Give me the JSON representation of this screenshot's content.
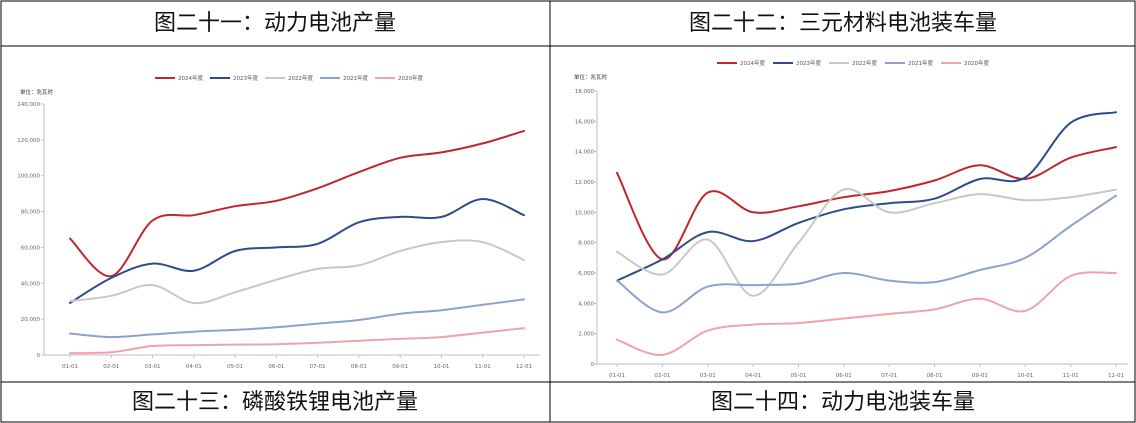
{
  "titles": {
    "top_left": "图二十一：动力电池产量",
    "top_right": "图二十二：三元材料电池装车量",
    "bottom_left": "图二十三：磷酸铁锂电池产量",
    "bottom_right": "图二十四：动力电池装车量"
  },
  "chart_data": [
    {
      "type": "line",
      "unit_label": "单位：兆瓦时",
      "categories": [
        "01-01",
        "02-01",
        "03-01",
        "04-01",
        "05-01",
        "06-01",
        "07-01",
        "08-01",
        "09-01",
        "10-01",
        "11-01",
        "12-01"
      ],
      "ylim": [
        0,
        140000
      ],
      "yticks": [
        0,
        20000,
        40000,
        60000,
        80000,
        100000,
        120000,
        140000
      ],
      "ytick_labels": [
        "0",
        "20,000",
        "40,000",
        "60,000",
        "80,000",
        "100,000",
        "120,000",
        "140,000"
      ],
      "legend_position": "top",
      "grid": false,
      "series": [
        {
          "name": "2024年度",
          "color": "#c0262d",
          "values": [
            65000,
            44000,
            75000,
            78000,
            83000,
            86000,
            93000,
            102000,
            110000,
            113000,
            118000,
            125000
          ]
        },
        {
          "name": "2023年度",
          "color": "#2e4b8c",
          "values": [
            29000,
            43000,
            51000,
            47000,
            58000,
            60000,
            62000,
            74000,
            77000,
            77000,
            87000,
            78000
          ]
        },
        {
          "name": "2022年度",
          "color": "#c8c8c8",
          "values": [
            30000,
            33000,
            39000,
            29000,
            35000,
            42000,
            48000,
            50000,
            58000,
            63000,
            63000,
            53000
          ]
        },
        {
          "name": "2021年度",
          "color": "#8ea2cf",
          "values": [
            12000,
            10000,
            11500,
            13000,
            14000,
            15500,
            17500,
            19500,
            23000,
            25000,
            28000,
            31000
          ]
        },
        {
          "name": "2020年度",
          "color": "#f0a3a8",
          "values": [
            1000,
            1500,
            5000,
            5500,
            5800,
            6000,
            6800,
            8000,
            9000,
            10000,
            12500,
            15000
          ]
        }
      ]
    },
    {
      "type": "line",
      "unit_label": "单位：兆瓦时",
      "categories": [
        "01-01",
        "02-01",
        "03-01",
        "04-01",
        "05-01",
        "06-01",
        "07-01",
        "08-01",
        "09-01",
        "10-01",
        "11-01",
        "12-01"
      ],
      "ylim": [
        0,
        18000
      ],
      "yticks": [
        0,
        2000,
        4000,
        6000,
        8000,
        10000,
        12000,
        14000,
        16000,
        18000
      ],
      "ytick_labels": [
        "0",
        "2,000",
        "4,000",
        "6,000",
        "8,000",
        "10,000",
        "12,000",
        "14,000",
        "16,000",
        "18,000"
      ],
      "legend_position": "top",
      "grid": false,
      "series": [
        {
          "name": "2024年度",
          "color": "#c0262d",
          "values": [
            12600,
            6900,
            11300,
            10000,
            10400,
            11000,
            11400,
            12100,
            13100,
            12200,
            13600,
            14300
          ]
        },
        {
          "name": "2023年度",
          "color": "#2e4b8c",
          "values": [
            5500,
            6900,
            8700,
            8100,
            9300,
            10200,
            10600,
            10900,
            12200,
            12300,
            15900,
            16600
          ]
        },
        {
          "name": "2022年度",
          "color": "#c8c8c8",
          "values": [
            7400,
            5900,
            8200,
            4500,
            8000,
            11500,
            10000,
            10600,
            11200,
            10800,
            11000,
            11500
          ]
        },
        {
          "name": "2021年度",
          "color": "#8ea2cf",
          "values": [
            5500,
            3400,
            5100,
            5200,
            5300,
            6000,
            5500,
            5400,
            6200,
            7000,
            9100,
            11100
          ]
        },
        {
          "name": "2020年度",
          "color": "#f0a3a8",
          "values": [
            1600,
            600,
            2200,
            2600,
            2700,
            3000,
            3300,
            3600,
            4300,
            3500,
            5800,
            6000
          ]
        }
      ]
    }
  ]
}
